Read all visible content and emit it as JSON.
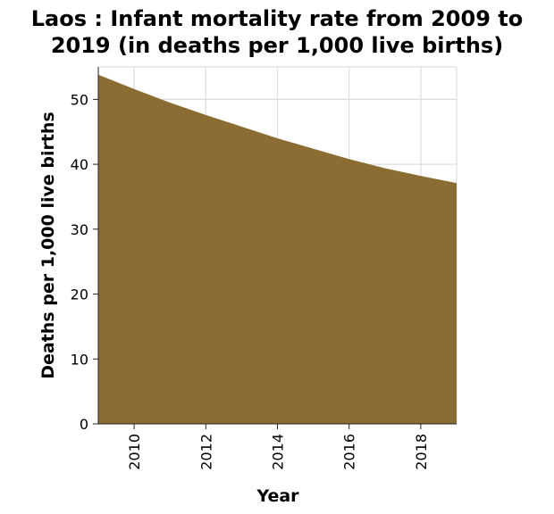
{
  "chart_data": {
    "type": "area",
    "title_lines": [
      "Laos : Infant mortality rate from 2009 to",
      "2019 (in deaths per 1,000 live births)"
    ],
    "xlabel": "Year",
    "ylabel": "Deaths per 1,000 live births",
    "x": [
      2009,
      2010,
      2011,
      2012,
      2013,
      2014,
      2015,
      2016,
      2017,
      2018,
      2019
    ],
    "values": [
      53.8,
      51.6,
      49.5,
      47.6,
      45.8,
      44.0,
      42.4,
      40.8,
      39.4,
      38.2,
      37.1
    ],
    "xlim": [
      2009,
      2019
    ],
    "ylim": [
      0,
      55
    ],
    "x_ticks": [
      2010,
      2012,
      2014,
      2016,
      2018
    ],
    "y_ticks": [
      0,
      10,
      20,
      30,
      40,
      50
    ],
    "grid": true,
    "fill_color": "#8b6d33",
    "grid_color": "#dddddd"
  }
}
